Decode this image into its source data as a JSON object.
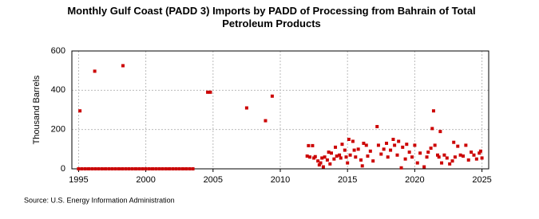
{
  "chart_data": {
    "type": "scatter",
    "title": "Monthly Gulf Coast (PADD 3) Imports by PADD of Processing from Bahrain of Total Petroleum Products",
    "y_label": "Thousand Barrels",
    "source": "Source: U.S. Energy Information Administration",
    "color": "#cc0000",
    "grid": true,
    "xlim": [
      1994.5,
      2025.5
    ],
    "xticks": [
      1995,
      2000,
      2005,
      2010,
      2015,
      2020,
      2025
    ],
    "ylim": [
      0,
      600
    ],
    "yticks": [
      0,
      200,
      400,
      600
    ],
    "x": [
      1995.0,
      1995.25,
      1995.5,
      1995.75,
      1996.0,
      1996.25,
      1996.5,
      1996.75,
      1997.0,
      1997.25,
      1997.5,
      1997.75,
      1998.0,
      1998.25,
      1998.5,
      1998.75,
      1999.0,
      1999.25,
      1999.5,
      1999.75,
      2000.0,
      2000.25,
      2000.5,
      2000.75,
      2001.0,
      2001.25,
      2001.5,
      2001.75,
      2002.0,
      2002.25,
      2002.5,
      2002.75,
      2003.0,
      2003.25,
      2003.5,
      1995.1,
      1996.2,
      1998.3,
      2004.6,
      2004.8,
      2007.5,
      2008.9,
      2009.4,
      2012.0,
      2012.1,
      2012.2,
      2012.4,
      2012.5,
      2012.6,
      2012.8,
      2012.9,
      2013.0,
      2013.1,
      2013.2,
      2013.3,
      2013.5,
      2013.6,
      2013.7,
      2013.8,
      2014.0,
      2014.1,
      2014.2,
      2014.4,
      2014.5,
      2014.6,
      2014.8,
      2014.9,
      2015.0,
      2015.1,
      2015.2,
      2015.4,
      2015.5,
      2015.6,
      2015.8,
      2016.0,
      2016.1,
      2016.2,
      2016.4,
      2016.5,
      2016.7,
      2016.9,
      2017.2,
      2017.3,
      2017.5,
      2017.7,
      2017.9,
      2018.0,
      2018.2,
      2018.4,
      2018.5,
      2018.7,
      2018.8,
      2019.0,
      2019.1,
      2019.3,
      2019.4,
      2019.6,
      2019.8,
      2020.0,
      2020.2,
      2020.4,
      2020.7,
      2020.9,
      2021.0,
      2021.2,
      2021.3,
      2021.4,
      2021.5,
      2021.7,
      2021.8,
      2021.9,
      2022.0,
      2022.2,
      2022.4,
      2022.6,
      2022.8,
      2022.9,
      2023.0,
      2023.2,
      2023.4,
      2023.6,
      2023.8,
      2024.0,
      2024.2,
      2024.4,
      2024.6,
      2024.8,
      2024.9,
      2025.0
    ],
    "values": [
      0,
      0,
      0,
      0,
      0,
      0,
      0,
      0,
      0,
      0,
      0,
      0,
      0,
      0,
      0,
      0,
      0,
      0,
      0,
      0,
      0,
      0,
      0,
      0,
      0,
      0,
      0,
      0,
      0,
      0,
      0,
      0,
      0,
      0,
      0,
      295,
      497,
      525,
      390,
      390,
      310,
      245,
      370,
      65,
      118,
      60,
      118,
      55,
      62,
      40,
      20,
      30,
      55,
      10,
      60,
      45,
      85,
      25,
      80,
      50,
      110,
      65,
      70,
      55,
      125,
      95,
      60,
      30,
      150,
      70,
      140,
      95,
      60,
      100,
      45,
      15,
      130,
      120,
      65,
      90,
      40,
      215,
      120,
      75,
      100,
      130,
      60,
      95,
      150,
      120,
      70,
      140,
      5,
      110,
      50,
      125,
      85,
      60,
      120,
      30,
      80,
      10,
      60,
      85,
      105,
      205,
      295,
      120,
      70,
      60,
      190,
      30,
      70,
      55,
      25,
      40,
      135,
      60,
      115,
      70,
      65,
      120,
      45,
      85,
      70,
      50,
      80,
      90,
      55
    ]
  }
}
